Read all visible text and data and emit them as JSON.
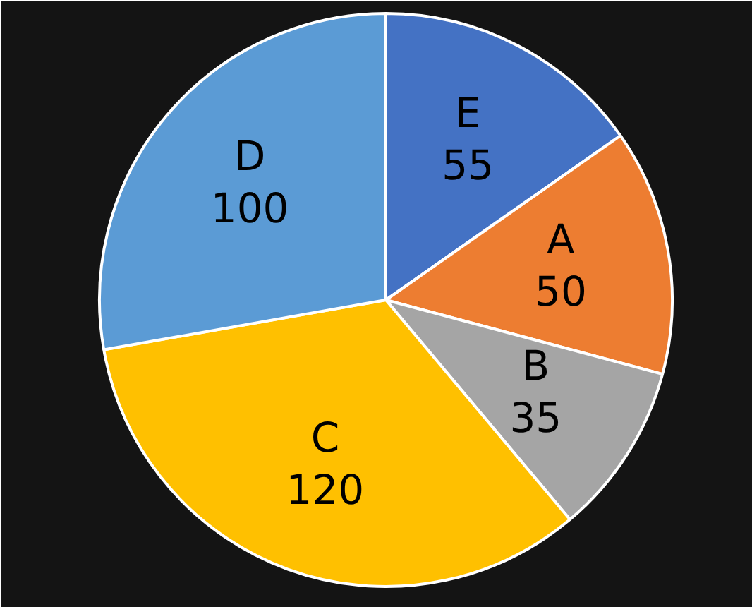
{
  "chart_data": {
    "type": "pie",
    "categories": [
      "E",
      "A",
      "B",
      "C",
      "D"
    ],
    "values": [
      55,
      50,
      35,
      120,
      100
    ],
    "colors": [
      "#4472c4",
      "#ed7d31",
      "#a5a5a5",
      "#ffc000",
      "#5b9bd5"
    ],
    "data_labels": true
  }
}
